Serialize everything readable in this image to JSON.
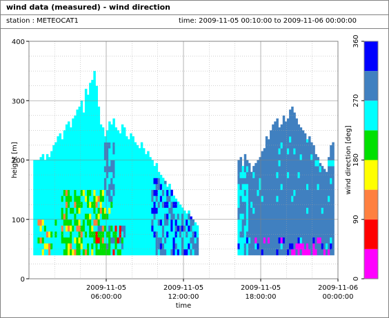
{
  "header": {
    "title": "wind data (measured) - wind direction",
    "station": "station : METEOCAT1",
    "time_range": "time: 2009-11-05 00:10:00 to 2009-11-06 00:00:00"
  },
  "chart_data": {
    "type": "heatmap",
    "xlabel": "time",
    "ylabel": "height [m]",
    "xlim": [
      0,
      24
    ],
    "ylim": [
      0,
      400
    ],
    "x_ticks": [
      {
        "value": 6,
        "line1": "2009-11-05",
        "line2": "06:00:00"
      },
      {
        "value": 12,
        "line1": "2009-11-05",
        "line2": "12:00:00"
      },
      {
        "value": 18,
        "line1": "2009-11-05",
        "line2": "18:00:00"
      },
      {
        "value": 24,
        "line1": "2009-11-06",
        "line2": "00:00:00"
      }
    ],
    "y_ticks": [
      0,
      100,
      200,
      300,
      400
    ],
    "grid": true,
    "colorbar": {
      "label": "wind direction [deg]",
      "ticks": [
        0,
        90,
        180,
        270,
        360
      ],
      "bands": [
        {
          "from": 0,
          "to": 45,
          "color": "#ff00ff"
        },
        {
          "from": 45,
          "to": 90,
          "color": "#ff0000"
        },
        {
          "from": 90,
          "to": 135,
          "color": "#ff8040"
        },
        {
          "from": 135,
          "to": 180,
          "color": "#ffff00"
        },
        {
          "from": 180,
          "to": 225,
          "color": "#00e000"
        },
        {
          "from": 225,
          "to": 270,
          "color": "#00ffff"
        },
        {
          "from": 270,
          "to": 315,
          "color": "#4080c0"
        },
        {
          "from": 315,
          "to": 360,
          "color": "#0000ff"
        }
      ]
    },
    "height_min": 40,
    "columns_early": {
      "start": 0.333,
      "step": 0.1667,
      "tops": [
        200,
        200,
        200,
        205,
        210,
        200,
        210,
        205,
        215,
        225,
        230,
        240,
        245,
        235,
        250,
        260,
        265,
        255,
        270,
        275,
        285,
        290,
        300,
        280,
        320,
        310,
        330,
        335,
        350,
        325,
        290,
        260,
        255,
        240,
        250,
        265,
        260,
        270,
        255,
        250,
        245,
        260,
        255,
        240,
        235,
        245,
        240,
        230,
        225,
        220,
        230,
        220,
        210,
        215,
        205,
        200,
        190,
        195,
        180,
        175,
        170,
        165,
        155,
        160,
        150,
        140,
        135,
        130,
        125,
        120,
        115,
        110,
        115,
        105,
        100,
        95,
        90
      ],
      "note": "top height per column (m) of the early block"
    },
    "columns_late": {
      "start": 16.2,
      "step": 0.1667,
      "tops": [
        200,
        205,
        190,
        210,
        200,
        195,
        180,
        190,
        195,
        200,
        205,
        215,
        220,
        240,
        235,
        250,
        260,
        265,
        270,
        255,
        260,
        275,
        265,
        270,
        285,
        290,
        280,
        270,
        260,
        255,
        250,
        245,
        235,
        240,
        230,
        225,
        210,
        205,
        195,
        190,
        185,
        180,
        205,
        225,
        230
      ],
      "note": "top height per column (m) of the late block"
    }
  }
}
